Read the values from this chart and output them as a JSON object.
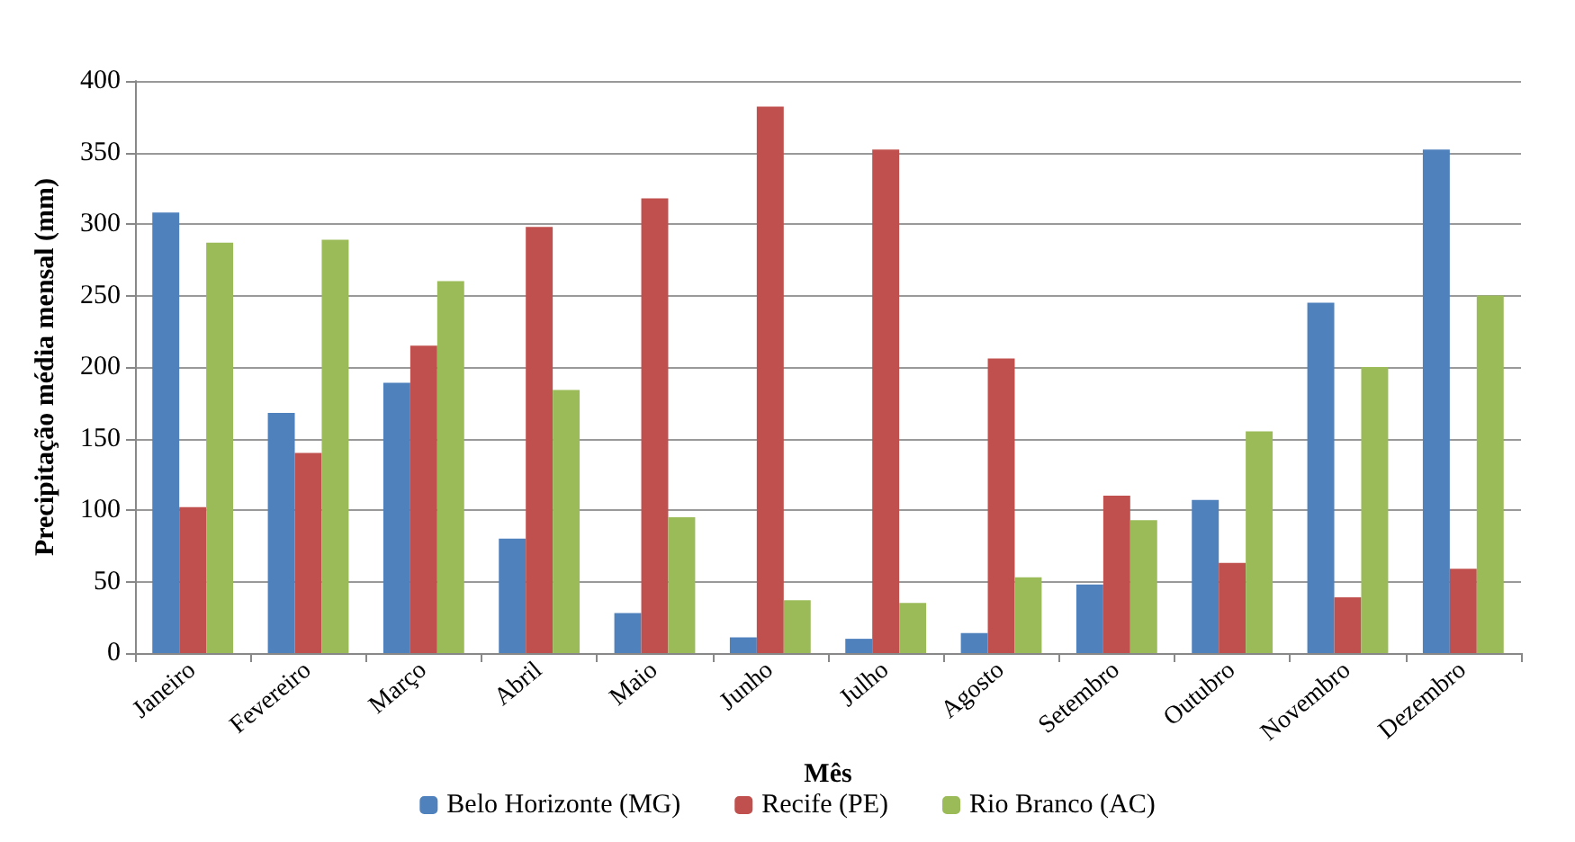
{
  "chart_data": {
    "type": "bar",
    "xlabel": "Mês",
    "ylabel": "Precipitação média mensal (mm)",
    "categories": [
      "Janeiro",
      "Fevereiro",
      "Março",
      "Abril",
      "Maio",
      "Junho",
      "Julho",
      "Agosto",
      "Setembro",
      "Outubro",
      "Novembro",
      "Dezembro"
    ],
    "series": [
      {
        "name": "Belo Horizonte (MG)",
        "color": "#4f81bd",
        "values": [
          308,
          168,
          189,
          80,
          28,
          11,
          10,
          14,
          48,
          107,
          245,
          352
        ]
      },
      {
        "name": "Recife (PE)",
        "color": "#c0504d",
        "values": [
          102,
          140,
          215,
          298,
          318,
          382,
          352,
          206,
          110,
          63,
          39,
          59
        ]
      },
      {
        "name": "Rio Branco (AC)",
        "color": "#9bbb59",
        "values": [
          287,
          289,
          260,
          184,
          95,
          37,
          35,
          53,
          93,
          155,
          200,
          250
        ]
      }
    ],
    "ylim": [
      0,
      400
    ],
    "yticks": [
      0,
      50,
      100,
      150,
      200,
      250,
      300,
      350,
      400
    ],
    "grid": "y",
    "legend": "bottom"
  }
}
